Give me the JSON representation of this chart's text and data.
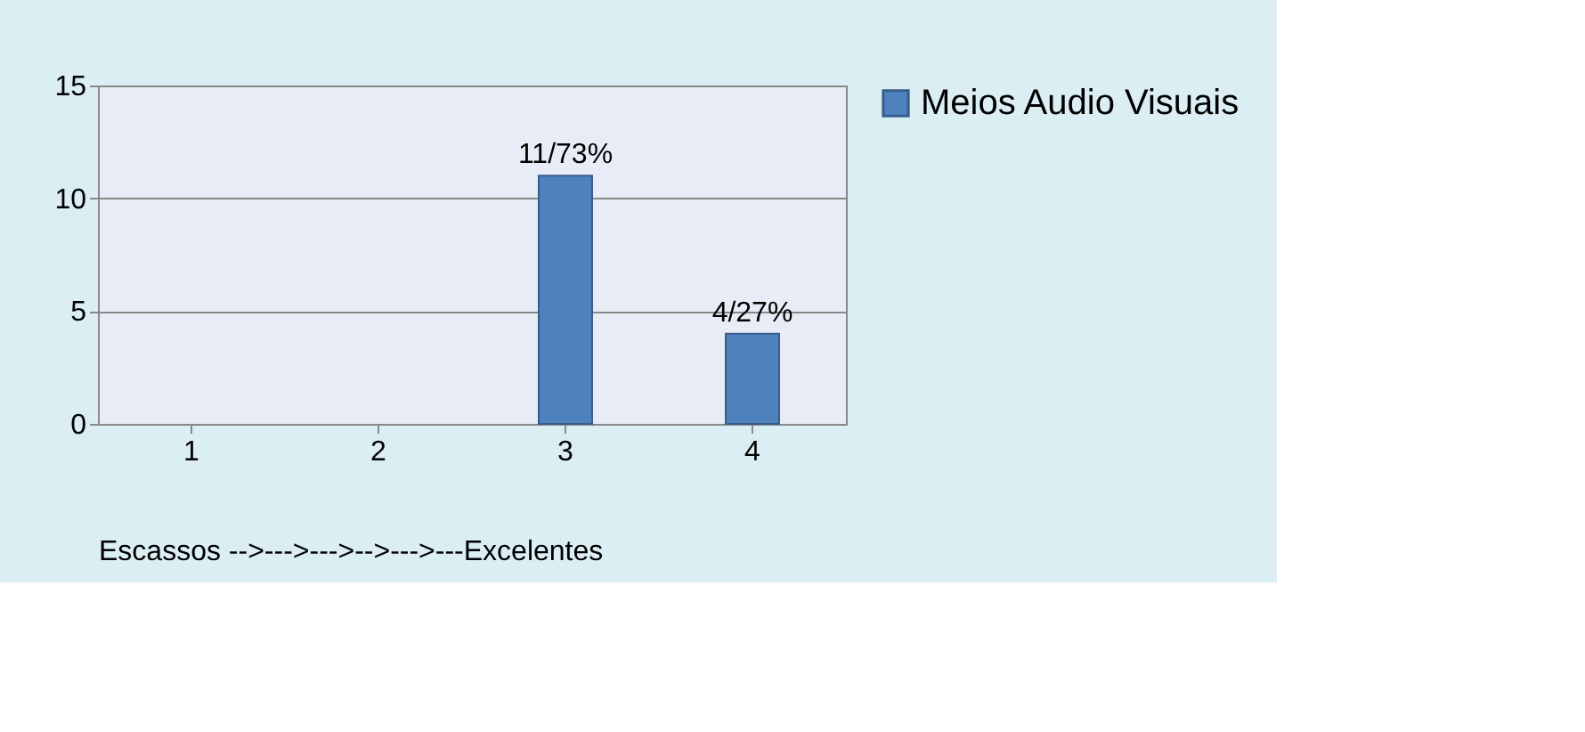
{
  "chart_data": {
    "type": "bar",
    "xlabel": "Escassos -->--->--->-->--->---Excelentes",
    "categories": [
      "1",
      "2",
      "3",
      "4"
    ],
    "series": [
      {
        "name": "Meios Audio Visuais",
        "color": "#4f81bd",
        "values": [
          null,
          null,
          11,
          4
        ],
        "value_labels": [
          null,
          null,
          "11/73%",
          "4/27%"
        ]
      }
    ],
    "ylim": [
      0,
      15
    ],
    "yticks": [
      0,
      5,
      10,
      15
    ],
    "grid": "y",
    "legend": "right"
  }
}
